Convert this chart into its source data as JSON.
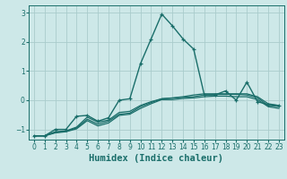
{
  "xlabel": "Humidex (Indice chaleur)",
  "xlim": [
    -0.5,
    23.5
  ],
  "ylim": [
    -1.35,
    3.25
  ],
  "background_color": "#cde8e8",
  "grid_color": "#aacccc",
  "line_color": "#1a6e6a",
  "series": [
    {
      "x": [
        0,
        1,
        2,
        3,
        4,
        5,
        6,
        7,
        8,
        9,
        10,
        11,
        12,
        13,
        14,
        15,
        16,
        17,
        18,
        19,
        20,
        21,
        22,
        23
      ],
      "y": [
        -1.22,
        -1.22,
        -1.0,
        -1.0,
        -0.55,
        -0.52,
        -0.72,
        -0.6,
        0.0,
        0.05,
        1.25,
        2.1,
        2.95,
        2.55,
        2.1,
        1.75,
        0.18,
        0.18,
        0.32,
        0.0,
        0.62,
        -0.05,
        -0.15,
        -0.18
      ],
      "marker": "+",
      "lw": 1.0
    },
    {
      "x": [
        0,
        1,
        2,
        3,
        4,
        5,
        6,
        7,
        8,
        9,
        10,
        11,
        12,
        13,
        14,
        15,
        16,
        17,
        18,
        19,
        20,
        21,
        22,
        23
      ],
      "y": [
        -1.22,
        -1.22,
        -1.08,
        -1.05,
        -0.92,
        -0.58,
        -0.75,
        -0.68,
        -0.42,
        -0.38,
        -0.18,
        -0.05,
        0.05,
        0.08,
        0.12,
        0.18,
        0.22,
        0.22,
        0.22,
        0.22,
        0.22,
        0.12,
        -0.12,
        -0.18
      ],
      "marker": null,
      "lw": 0.9
    },
    {
      "x": [
        0,
        1,
        2,
        3,
        4,
        5,
        6,
        7,
        8,
        9,
        10,
        11,
        12,
        13,
        14,
        15,
        16,
        17,
        18,
        19,
        20,
        21,
        22,
        23
      ],
      "y": [
        -1.22,
        -1.22,
        -1.1,
        -1.07,
        -0.95,
        -0.65,
        -0.82,
        -0.72,
        -0.48,
        -0.44,
        -0.22,
        -0.08,
        0.05,
        0.07,
        0.1,
        0.12,
        0.18,
        0.2,
        0.2,
        0.2,
        0.18,
        0.08,
        -0.18,
        -0.22
      ],
      "marker": null,
      "lw": 0.9
    },
    {
      "x": [
        0,
        1,
        2,
        3,
        4,
        5,
        6,
        7,
        8,
        9,
        10,
        11,
        12,
        13,
        14,
        15,
        16,
        17,
        18,
        19,
        20,
        21,
        22,
        23
      ],
      "y": [
        -1.22,
        -1.22,
        -1.12,
        -1.08,
        -0.98,
        -0.7,
        -0.88,
        -0.78,
        -0.52,
        -0.48,
        -0.28,
        -0.12,
        0.02,
        0.02,
        0.06,
        0.08,
        0.12,
        0.14,
        0.14,
        0.12,
        0.12,
        0.02,
        -0.22,
        -0.28
      ],
      "marker": null,
      "lw": 0.9
    }
  ],
  "xticks": [
    0,
    1,
    2,
    3,
    4,
    5,
    6,
    7,
    8,
    9,
    10,
    11,
    12,
    13,
    14,
    15,
    16,
    17,
    18,
    19,
    20,
    21,
    22,
    23
  ],
  "yticks": [
    -1,
    0,
    1,
    2,
    3
  ],
  "tick_fontsize": 5.5,
  "xlabel_fontsize": 7.5
}
